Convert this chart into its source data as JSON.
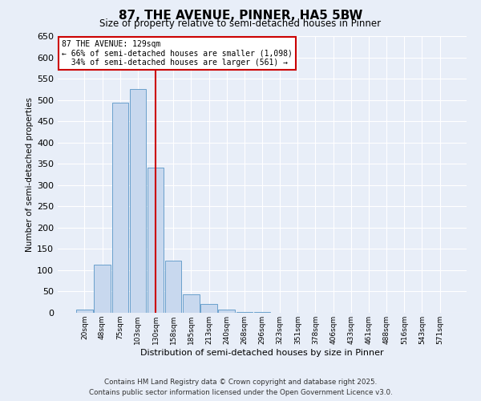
{
  "title": "87, THE AVENUE, PINNER, HA5 5BW",
  "subtitle": "Size of property relative to semi-detached houses in Pinner",
  "xlabel": "Distribution of semi-detached houses by size in Pinner",
  "ylabel": "Number of semi-detached properties",
  "categories": [
    "20sqm",
    "48sqm",
    "75sqm",
    "103sqm",
    "130sqm",
    "158sqm",
    "185sqm",
    "213sqm",
    "240sqm",
    "268sqm",
    "296sqm",
    "323sqm",
    "351sqm",
    "378sqm",
    "406sqm",
    "433sqm",
    "461sqm",
    "488sqm",
    "516sqm",
    "543sqm",
    "571sqm"
  ],
  "values": [
    8,
    113,
    493,
    526,
    341,
    122,
    43,
    20,
    7,
    2,
    1,
    0,
    0,
    0,
    0,
    0,
    0,
    0,
    0,
    0,
    0
  ],
  "bar_color": "#c8d8ee",
  "bar_edge_color": "#6aa0cc",
  "vline_color": "#cc0000",
  "vline_pos": 4.0,
  "property_sqm": 129,
  "pct_smaller": 66,
  "pct_larger": 34,
  "count_smaller": 1098,
  "count_larger": 561,
  "annotation_box_color": "#cc0000",
  "ylim_max": 650,
  "background_color": "#e8eef8",
  "grid_color": "#ffffff",
  "footer1": "Contains HM Land Registry data © Crown copyright and database right 2025.",
  "footer2": "Contains public sector information licensed under the Open Government Licence v3.0."
}
